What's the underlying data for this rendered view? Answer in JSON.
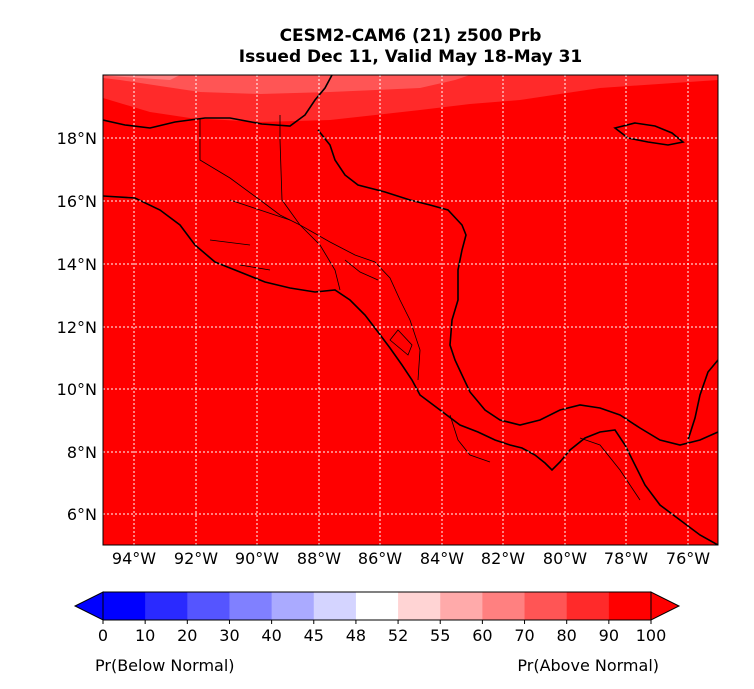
{
  "title": {
    "line1": "CESM2-CAM6 (21) z500 Prb",
    "line2": "Issued Dec 11, Valid May 18-May 31"
  },
  "map": {
    "lat_ticks": [
      "18°N",
      "16°N",
      "14°N",
      "12°N",
      "10°N",
      "8°N",
      "6°N"
    ],
    "lon_ticks": [
      "94°W",
      "92°W",
      "90°W",
      "88°W",
      "86°W",
      "84°W",
      "82°W",
      "80°W",
      "78°W",
      "76°W"
    ],
    "dominant_fill": "#ff0000",
    "grid": "dotted white"
  },
  "colorbar": {
    "tick_labels": [
      "0",
      "10",
      "20",
      "30",
      "40",
      "45",
      "48",
      "52",
      "55",
      "60",
      "70",
      "80",
      "90",
      "100"
    ],
    "colors": [
      "#0000ff",
      "#2a2aff",
      "#5555ff",
      "#8080ff",
      "#aaaaff",
      "#d4d4ff",
      "#ffffff",
      "#ffd4d4",
      "#ffaaaa",
      "#ff8080",
      "#ff5555",
      "#ff2a2a",
      "#ff0000"
    ],
    "label_left": "Pr(Below Normal)",
    "label_right": "Pr(Above Normal)"
  }
}
